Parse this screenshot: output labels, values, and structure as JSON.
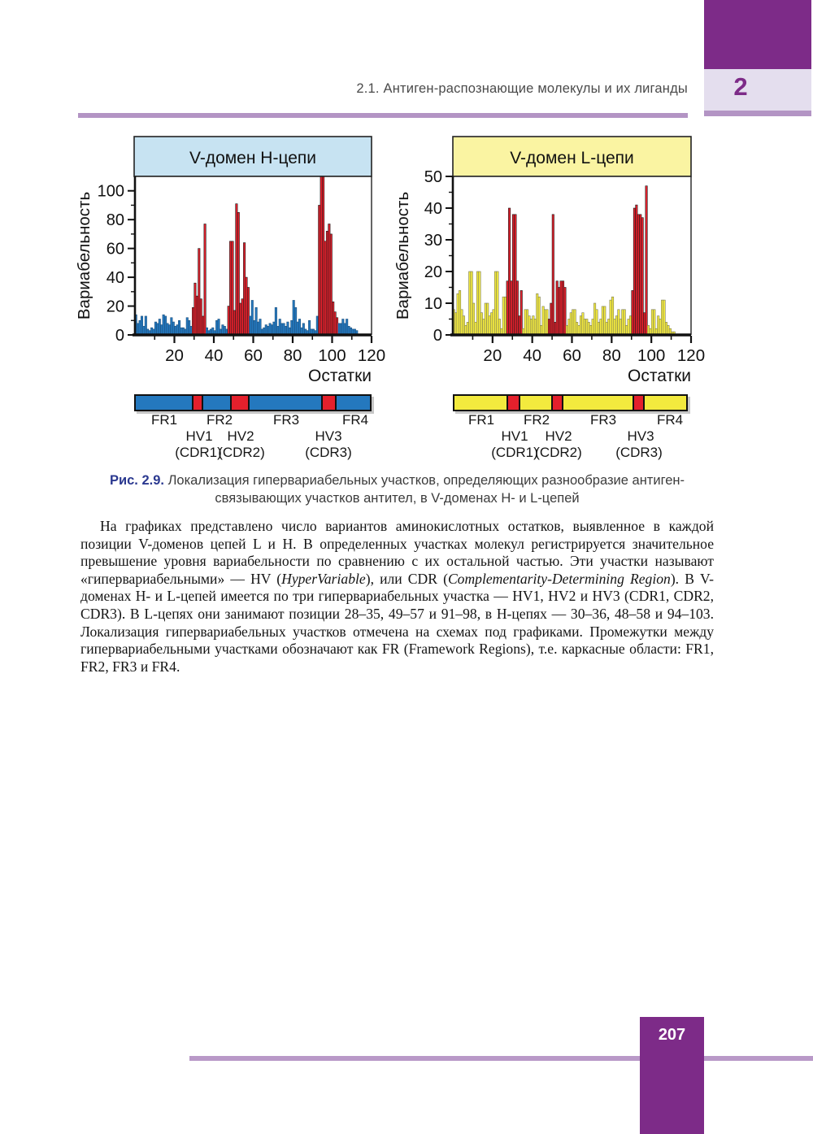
{
  "page": {
    "running_head": "2.1. Антиген-распознающие молекулы и их лиганды",
    "chapter_number": "2",
    "page_number": "207"
  },
  "figure": {
    "caption_label": "Рис. 2.9.",
    "caption_line1": "Локализация гипервариабельных участков, определяющих разнообразие антиген-",
    "caption_line2": "связывающих участков антител, в V-доменах H- и L-цепей"
  },
  "strip_labels": {
    "fr": [
      "FR1",
      "FR2",
      "FR3",
      "FR4"
    ],
    "hv": [
      "HV1",
      "HV2",
      "HV3"
    ],
    "cdr": [
      "(CDR1)",
      "(CDR2)",
      "(CDR3)"
    ]
  },
  "body": {
    "seg1": "На графиках представлено число вариантов аминокислотных остатков, выявленное в каждой позиции V-доменов цепей L и H. В определенных участках молекул регистрируется значительное превышение уровня вариабельности по сравнению с их остальной частью. Эти участки называют «гипервариабельными» — HV (",
    "seg2_italic": "HyperVariable",
    "seg3": "), или CDR (",
    "seg4_italic": "Complementarity-Determining Region",
    "seg5": "). В V-доменах H- и L-цепей имеется по три гипервариабельных участка — HV1, HV2 и HV3 (CDR1, CDR2, CDR3). В L-цепях они занимают позиции 28–35, 49–57 и 91–98, в H-цепях — 30–36, 48–58 и 94–103. Локализация гипервариабельных участков отмечена на схемах под графиками. Промежутки между гипервариабельными участками обозначают как FR (Framework Regions), т.е. каркасные области: FR1, FR2, FR3 и FR4."
  },
  "colors": {
    "accent_purple": "#7d2b88",
    "lavender": "#e4deee",
    "mauve_rule": "#b394c4",
    "footer_rule": "#b999c8",
    "caption_label_blue": "#2b3990"
  },
  "chart_data": [
    {
      "id": "h_chain",
      "type": "bar",
      "title": "V-домен H-цепи",
      "title_bg": "#c7e3f2",
      "xlabel": "Остатки",
      "ylabel": "Вариабельность",
      "ylim": [
        0,
        110
      ],
      "ytick_step": 20,
      "ytick_minor": 10,
      "ytick_label_max": 100,
      "xticks": [
        20,
        40,
        60,
        80,
        100,
        120
      ],
      "xtick_minor": 10,
      "bar_color": "#2478be",
      "bar_stroke": "#1c4f7c",
      "hv_color": "#e4202c",
      "hv_ranges": [
        [
          30,
          36
        ],
        [
          48,
          58
        ],
        [
          94,
          103
        ]
      ],
      "values": [
        14,
        8,
        10,
        13,
        6,
        13,
        4,
        3,
        5,
        4,
        9,
        8,
        11,
        7,
        14,
        13,
        8,
        7,
        12,
        9,
        6,
        7,
        10,
        5,
        5,
        4,
        12,
        10,
        6,
        19,
        36,
        27,
        60,
        25,
        13,
        77,
        5,
        3,
        4,
        5,
        3,
        10,
        11,
        4,
        7,
        6,
        4,
        20,
        65,
        65,
        17,
        91,
        85,
        22,
        25,
        64,
        40,
        33,
        13,
        24,
        10,
        19,
        9,
        11,
        4,
        5,
        7,
        6,
        8,
        7,
        9,
        19,
        6,
        11,
        8,
        8,
        6,
        9,
        5,
        10,
        24,
        19,
        9,
        11,
        5,
        8,
        4,
        3,
        10,
        4,
        4,
        3,
        13,
        90,
        110,
        110,
        65,
        72,
        77,
        70,
        23,
        16,
        12,
        8,
        8,
        11,
        8,
        11,
        6,
        5,
        4,
        4,
        3
      ]
    },
    {
      "id": "l_chain",
      "type": "bar",
      "title": "V-домен L-цепи",
      "title_bg": "#faf4a2",
      "xlabel": "Остатки",
      "ylabel": "Вариабельность",
      "ylim": [
        0,
        50
      ],
      "ytick_step": 10,
      "ytick_minor": 5,
      "ytick_label_max": 50,
      "xticks": [
        20,
        40,
        60,
        80,
        100,
        120
      ],
      "xtick_minor": 10,
      "bar_color": "#f3ea3e",
      "bar_stroke": "#7a7a56",
      "hv_color": "#e4202c",
      "hv_ranges": [
        [
          28,
          35
        ],
        [
          49,
          57
        ],
        [
          91,
          98
        ]
      ],
      "values": [
        8,
        7,
        13,
        14,
        8,
        6,
        3,
        4,
        20,
        20,
        10,
        4,
        20,
        20,
        7,
        5,
        10,
        10,
        6,
        7,
        8,
        20,
        20,
        5,
        2,
        12,
        12,
        17,
        40,
        17,
        38,
        38,
        17,
        6,
        14,
        2,
        8,
        8,
        6,
        5,
        6,
        5,
        13,
        12,
        3,
        9,
        8,
        8,
        5,
        10,
        38,
        4,
        17,
        15,
        17,
        17,
        15,
        3,
        5,
        7,
        8,
        8,
        4,
        3,
        6,
        7,
        5,
        5,
        4,
        3,
        5,
        10,
        8,
        4,
        5,
        9,
        9,
        4,
        5,
        11,
        12,
        5,
        6,
        8,
        5,
        8,
        8,
        3,
        5,
        6,
        14,
        40,
        41,
        38,
        38,
        37,
        7,
        47,
        3,
        2,
        8,
        8,
        2,
        6,
        5,
        11,
        11,
        4,
        3,
        2,
        1,
        1
      ]
    }
  ]
}
